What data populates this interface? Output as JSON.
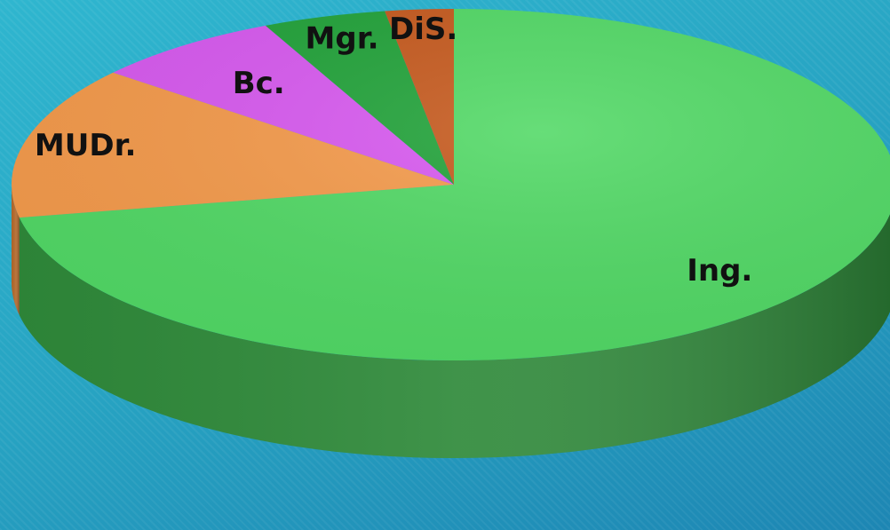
{
  "chart_data": {
    "type": "pie",
    "title": "",
    "style": "3d",
    "start": "12 o'clock",
    "direction": "clockwise",
    "categories": [
      "Ing.",
      "MUDr.",
      "Bc.",
      "Mgr.",
      "DiS."
    ],
    "values": [
      72,
      14,
      7,
      4.5,
      2.5
    ],
    "labels": [
      "Ing.",
      "MUDr.",
      "Bc.",
      "Mgr.",
      "DiS."
    ],
    "colors": [
      "#52d966",
      "#f59b4c",
      "#d85af0",
      "#22a33a",
      "#c65a1e"
    ],
    "side_colors": [
      "#2f8a3a",
      "#b3682a",
      "#9a38b0",
      "#16702a",
      "#8a3a12"
    ]
  }
}
